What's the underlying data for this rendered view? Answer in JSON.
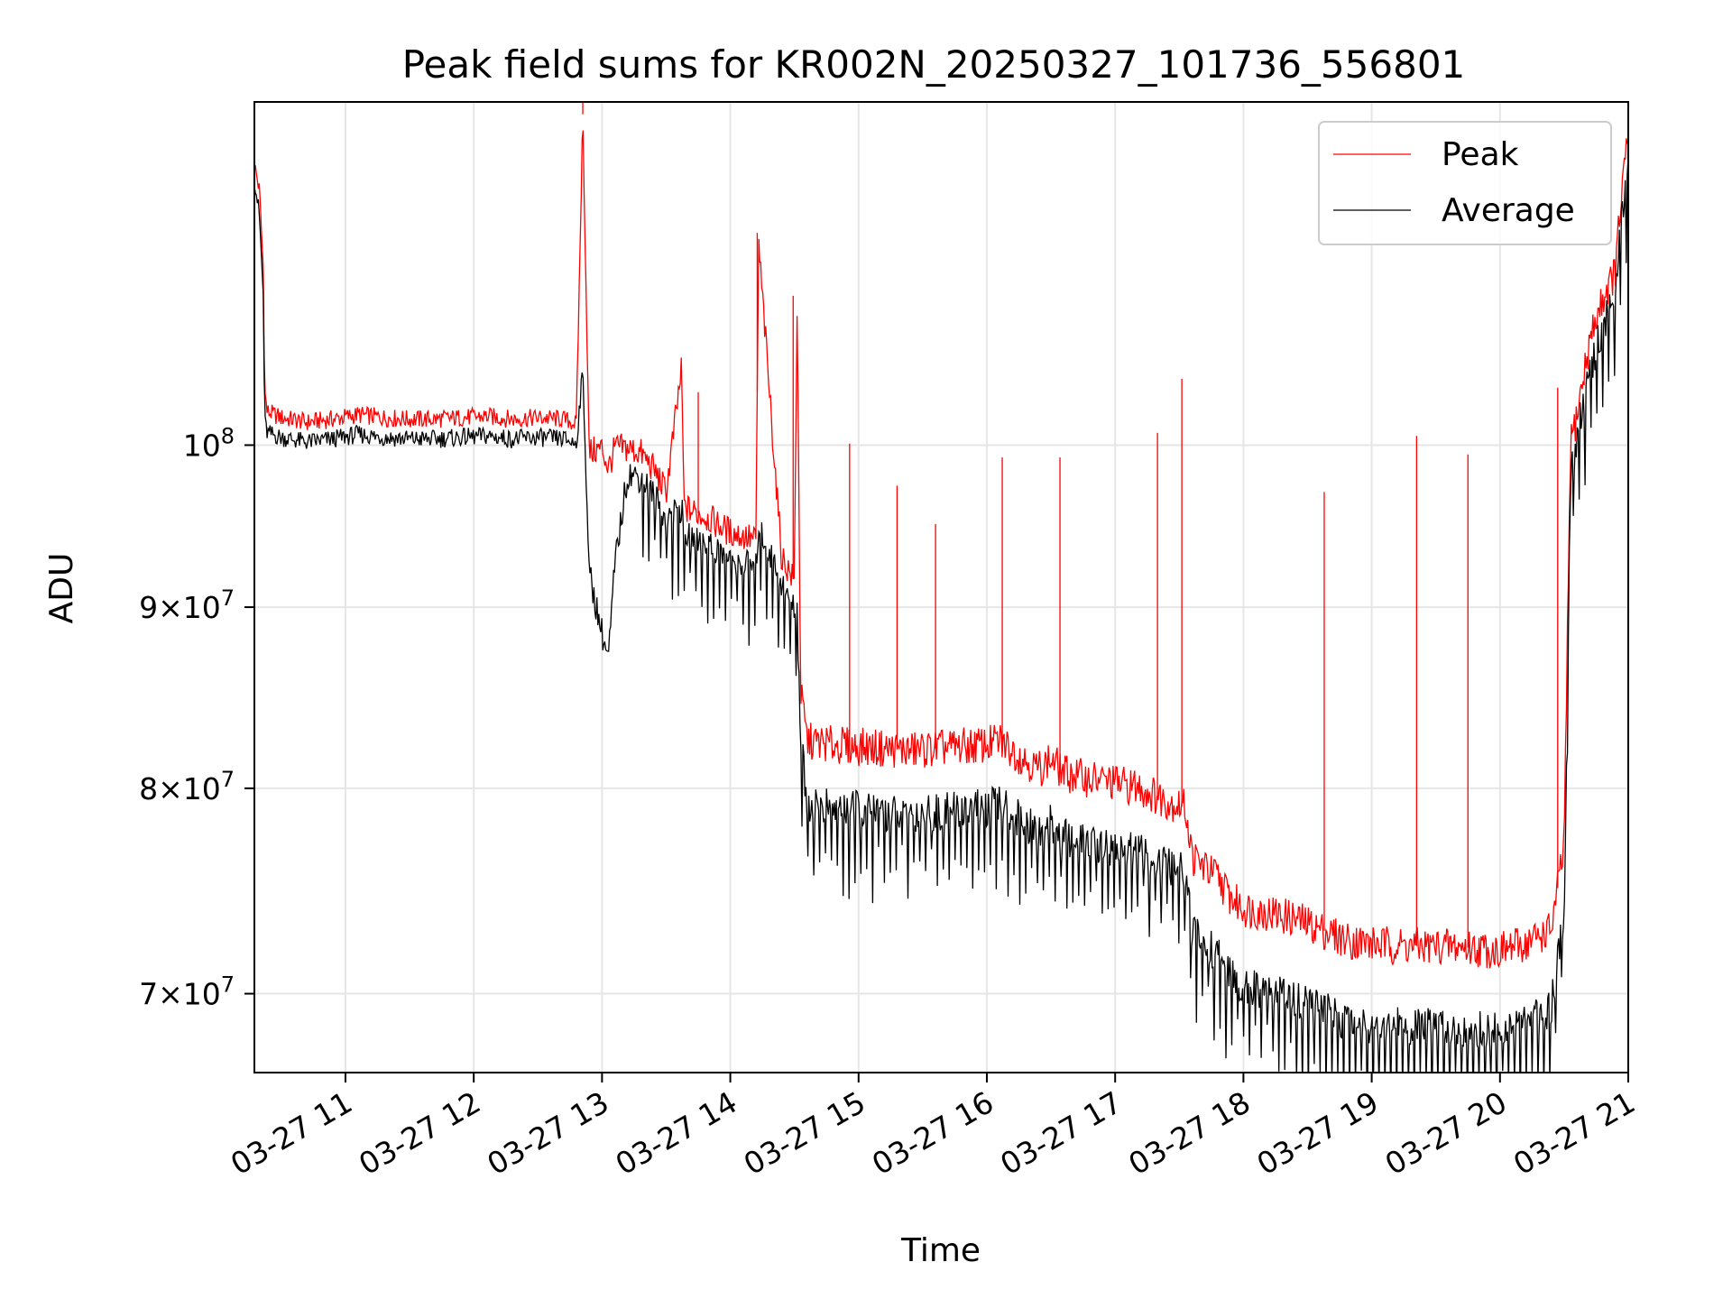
{
  "chart_data": {
    "type": "line",
    "title": "Peak field sums for KR002N_20250327_101736_556801",
    "xlabel": "Time",
    "ylabel": "ADU",
    "x_unit": "hours",
    "xlim": [
      10.29,
      21.0
    ],
    "ylim": [
      66500000,
      125000000
    ],
    "yscale": "log",
    "grid": true,
    "legend": {
      "location": "top-right",
      "entries": [
        "Peak",
        "Average"
      ]
    },
    "x_ticks": [
      {
        "value": 11,
        "label": "03-27 11"
      },
      {
        "value": 12,
        "label": "03-27 12"
      },
      {
        "value": 13,
        "label": "03-27 13"
      },
      {
        "value": 14,
        "label": "03-27 14"
      },
      {
        "value": 15,
        "label": "03-27 15"
      },
      {
        "value": 16,
        "label": "03-27 16"
      },
      {
        "value": 17,
        "label": "03-27 17"
      },
      {
        "value": 18,
        "label": "03-27 18"
      },
      {
        "value": 19,
        "label": "03-27 19"
      },
      {
        "value": 20,
        "label": "03-27 20"
      },
      {
        "value": 21,
        "label": "03-27 21"
      }
    ],
    "y_ticks": [
      {
        "value": 70000000,
        "mant": "7",
        "base": "10",
        "exp": "7"
      },
      {
        "value": 80000000,
        "mant": "8",
        "base": "10",
        "exp": "7"
      },
      {
        "value": 90000000,
        "mant": "9",
        "base": "10",
        "exp": "7"
      },
      {
        "value": 100000000,
        "mant": "",
        "base": "10",
        "exp": "8"
      }
    ],
    "series": [
      {
        "name": "Peak",
        "color": "#ff0000",
        "x": [
          10.29,
          10.33,
          10.36,
          10.37,
          10.39,
          10.5,
          10.7,
          10.9,
          11.1,
          11.3,
          11.5,
          11.7,
          11.9,
          12.1,
          12.3,
          12.5,
          12.7,
          12.8,
          12.85,
          12.9,
          13.0,
          13.05,
          13.1,
          13.2,
          13.3,
          13.4,
          13.5,
          13.62,
          13.64,
          13.8,
          14.0,
          14.2,
          14.22,
          14.4,
          14.5,
          14.52,
          14.55,
          14.6,
          14.8,
          15.0,
          15.2,
          15.4,
          15.6,
          15.8,
          16.0,
          16.1,
          16.2,
          16.4,
          16.5,
          16.6,
          16.8,
          17.0,
          17.2,
          17.35,
          17.55,
          17.6,
          17.7,
          17.8,
          17.9,
          18.0,
          18.2,
          18.4,
          18.6,
          18.8,
          19.0,
          19.3,
          19.6,
          19.8,
          20.0,
          20.2,
          20.4,
          20.5,
          20.55,
          20.6,
          20.7,
          20.8,
          20.9,
          20.95,
          21.0
        ],
        "values": [
          120000000,
          118000000,
          112000000,
          103500000,
          102200000,
          101800000,
          101500000,
          101700000,
          102000000,
          101800000,
          101700000,
          101700000,
          101800000,
          101900000,
          101700000,
          101800000,
          101700000,
          101400000,
          124000000,
          99500000,
          99800000,
          98500000,
          99800000,
          99800000,
          99500000,
          98500000,
          97000000,
          105000000,
          96000000,
          95500000,
          94500000,
          94000000,
          114000000,
          93000000,
          91500000,
          110000000,
          85000000,
          82500000,
          82300000,
          82200000,
          82100000,
          82000000,
          82100000,
          82200000,
          82300000,
          82500000,
          82000000,
          81000000,
          81500000,
          80800000,
          80500000,
          80300000,
          80000000,
          79500000,
          79000000,
          76500000,
          76000000,
          75500000,
          74500000,
          74000000,
          73800000,
          73500000,
          73000000,
          72500000,
          72300000,
          72200000,
          72200000,
          72100000,
          72000000,
          72300000,
          73000000,
          77000000,
          100000000,
          102000000,
          107000000,
          110000000,
          112000000,
          118000000,
          122000000
        ]
      },
      {
        "name": "Average",
        "color": "#000000",
        "x": [
          10.29,
          10.33,
          10.36,
          10.37,
          10.39,
          10.5,
          10.7,
          10.9,
          11.1,
          11.3,
          11.5,
          11.7,
          11.9,
          12.1,
          12.3,
          12.5,
          12.7,
          12.8,
          12.85,
          12.9,
          13.0,
          13.05,
          13.1,
          13.2,
          13.3,
          13.4,
          13.5,
          13.62,
          13.64,
          13.8,
          14.0,
          14.2,
          14.22,
          14.4,
          14.5,
          14.52,
          14.55,
          14.6,
          14.8,
          15.0,
          15.2,
          15.4,
          15.6,
          15.8,
          16.0,
          16.1,
          16.2,
          16.4,
          16.5,
          16.6,
          16.8,
          17.0,
          17.2,
          17.35,
          17.55,
          17.6,
          17.7,
          17.8,
          17.9,
          18.0,
          18.2,
          18.4,
          18.6,
          18.8,
          19.0,
          19.3,
          19.6,
          19.8,
          20.0,
          20.2,
          20.4,
          20.5,
          20.55,
          20.6,
          20.7,
          20.8,
          20.9,
          20.95,
          21.0
        ],
        "values": [
          119000000,
          116000000,
          110000000,
          101500000,
          100800000,
          100500000,
          100200000,
          100400000,
          100700000,
          100500000,
          100400000,
          100400000,
          100500000,
          100600000,
          100400000,
          100500000,
          100400000,
          100100000,
          105000000,
          92000000,
          88500000,
          87000000,
          92500000,
          98200000,
          97900000,
          96900000,
          95400000,
          96000000,
          94400000,
          93900000,
          92900000,
          92400000,
          95000000,
          91400000,
          89900000,
          90000000,
          82500000,
          79200000,
          79000000,
          78900000,
          78800000,
          78700000,
          78800000,
          78900000,
          79000000,
          79200000,
          78700000,
          77700000,
          78200000,
          77500000,
          77200000,
          77000000,
          76700000,
          76200000,
          75700000,
          72800000,
          72300000,
          71800000,
          70800000,
          70300000,
          70100000,
          69800000,
          69300000,
          68800000,
          68600000,
          68500000,
          68500000,
          68400000,
          68300000,
          68600000,
          69300000,
          74000000,
          98000000,
          100500000,
          105000000,
          108000000,
          110000000,
          116000000,
          121000000
        ]
      }
    ],
    "annotations": {
      "peak_spikes": [
        {
          "x": 12.85,
          "y": 125000000
        },
        {
          "x": 13.62,
          "y": 104800000
        },
        {
          "x": 13.75,
          "y": 103500000
        },
        {
          "x": 14.21,
          "y": 114800000
        },
        {
          "x": 14.49,
          "y": 110200000
        },
        {
          "x": 14.93,
          "y": 100100000
        },
        {
          "x": 15.3,
          "y": 97400000
        },
        {
          "x": 15.6,
          "y": 95000000
        },
        {
          "x": 16.12,
          "y": 99200000
        },
        {
          "x": 16.57,
          "y": 99200000
        },
        {
          "x": 17.33,
          "y": 100800000
        },
        {
          "x": 17.52,
          "y": 104400000
        },
        {
          "x": 18.63,
          "y": 97000000
        },
        {
          "x": 19.35,
          "y": 100600000
        },
        {
          "x": 19.75,
          "y": 99400000
        },
        {
          "x": 20.45,
          "y": 103800000
        }
      ]
    }
  }
}
